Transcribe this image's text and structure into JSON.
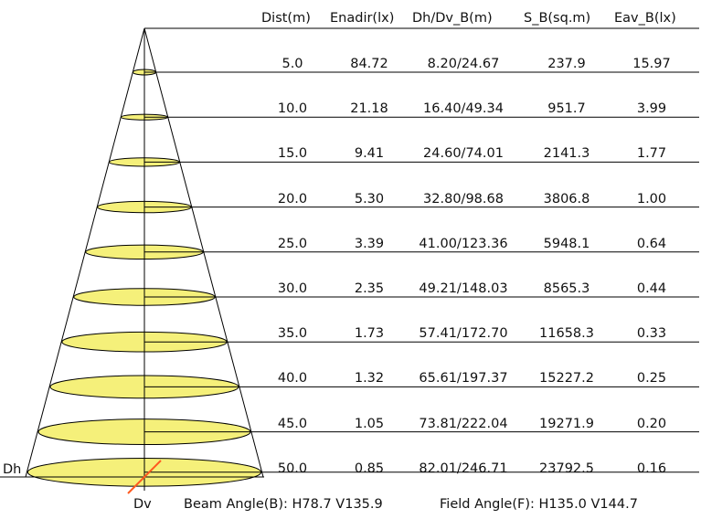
{
  "headers": {
    "dist": "Dist(m)",
    "enadir": "Enadir(lx)",
    "dhdv": "Dh/Dv_B(m)",
    "area": "S_B(sq.m)",
    "eav": "Eav_B(lx)"
  },
  "rows": [
    {
      "dist": "5.0",
      "enadir": "84.72",
      "dhdv": "8.20/24.67",
      "area": "237.9",
      "eav": "15.97"
    },
    {
      "dist": "10.0",
      "enadir": "21.18",
      "dhdv": "16.40/49.34",
      "area": "951.7",
      "eav": "3.99"
    },
    {
      "dist": "15.0",
      "enadir": "9.41",
      "dhdv": "24.60/74.01",
      "area": "2141.3",
      "eav": "1.77"
    },
    {
      "dist": "20.0",
      "enadir": "5.30",
      "dhdv": "32.80/98.68",
      "area": "3806.8",
      "eav": "1.00"
    },
    {
      "dist": "25.0",
      "enadir": "3.39",
      "dhdv": "41.00/123.36",
      "area": "5948.1",
      "eav": "0.64"
    },
    {
      "dist": "30.0",
      "enadir": "2.35",
      "dhdv": "49.21/148.03",
      "area": "8565.3",
      "eav": "0.44"
    },
    {
      "dist": "35.0",
      "enadir": "1.73",
      "dhdv": "57.41/172.70",
      "area": "11658.3",
      "eav": "0.33"
    },
    {
      "dist": "40.0",
      "enadir": "1.32",
      "dhdv": "65.61/197.37",
      "area": "15227.2",
      "eav": "0.25"
    },
    {
      "dist": "45.0",
      "enadir": "1.05",
      "dhdv": "73.81/222.04",
      "area": "19271.9",
      "eav": "0.20"
    },
    {
      "dist": "50.0",
      "enadir": "0.85",
      "dhdv": "82.01/246.71",
      "area": "23792.5",
      "eav": "0.16"
    }
  ],
  "labels": {
    "dh": "Dh",
    "dv": "Dv",
    "beam_angle": "Beam Angle(B): H78.7 V135.9",
    "field_angle": "Field Angle(F): H135.0 V144.7"
  },
  "colors": {
    "ellipse_fill": "#f5f07a",
    "line": "#000000",
    "dv_line": "#ff5a1f"
  }
}
